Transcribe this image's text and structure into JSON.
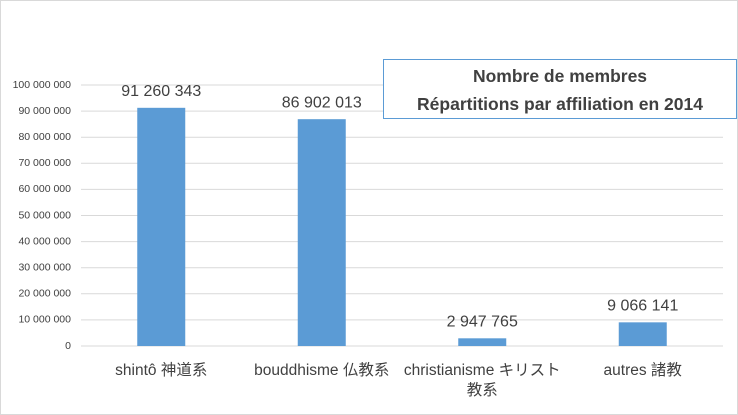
{
  "chart_data": {
    "type": "bar",
    "title": [
      "Nombre de membres",
      "Répartitions par affiliation en 2014"
    ],
    "categories": [
      "shintô 神道系",
      "bouddhisme 仏教系",
      "christianisme キリスト教系",
      "autres 諸教"
    ],
    "values": [
      91260343,
      86902013,
      2947765,
      9066141
    ],
    "value_labels": [
      "91 260 343",
      "86 902 013",
      "2 947 765",
      "9 066 141"
    ],
    "color": "#5b9bd5",
    "ylim": [
      0,
      100000000
    ],
    "yticks": [
      0,
      {
        "value": 10000000,
        "label": "10 000 000"
      },
      {
        "value": 20000000,
        "label": "20 000 000"
      },
      {
        "value": 30000000,
        "label": "30 000 000"
      },
      {
        "value": 40000000,
        "label": "40 000 000"
      },
      {
        "value": 50000000,
        "label": "50 000 000"
      },
      {
        "value": 60000000,
        "label": "60 000 000"
      },
      {
        "value": 70000000,
        "label": "70 000 000"
      },
      {
        "value": 80000000,
        "label": "80 000 000"
      },
      {
        "value": 90000000,
        "label": "90 000 000"
      },
      {
        "value": 100000000,
        "label": "100 000 000"
      }
    ],
    "grid": true
  }
}
